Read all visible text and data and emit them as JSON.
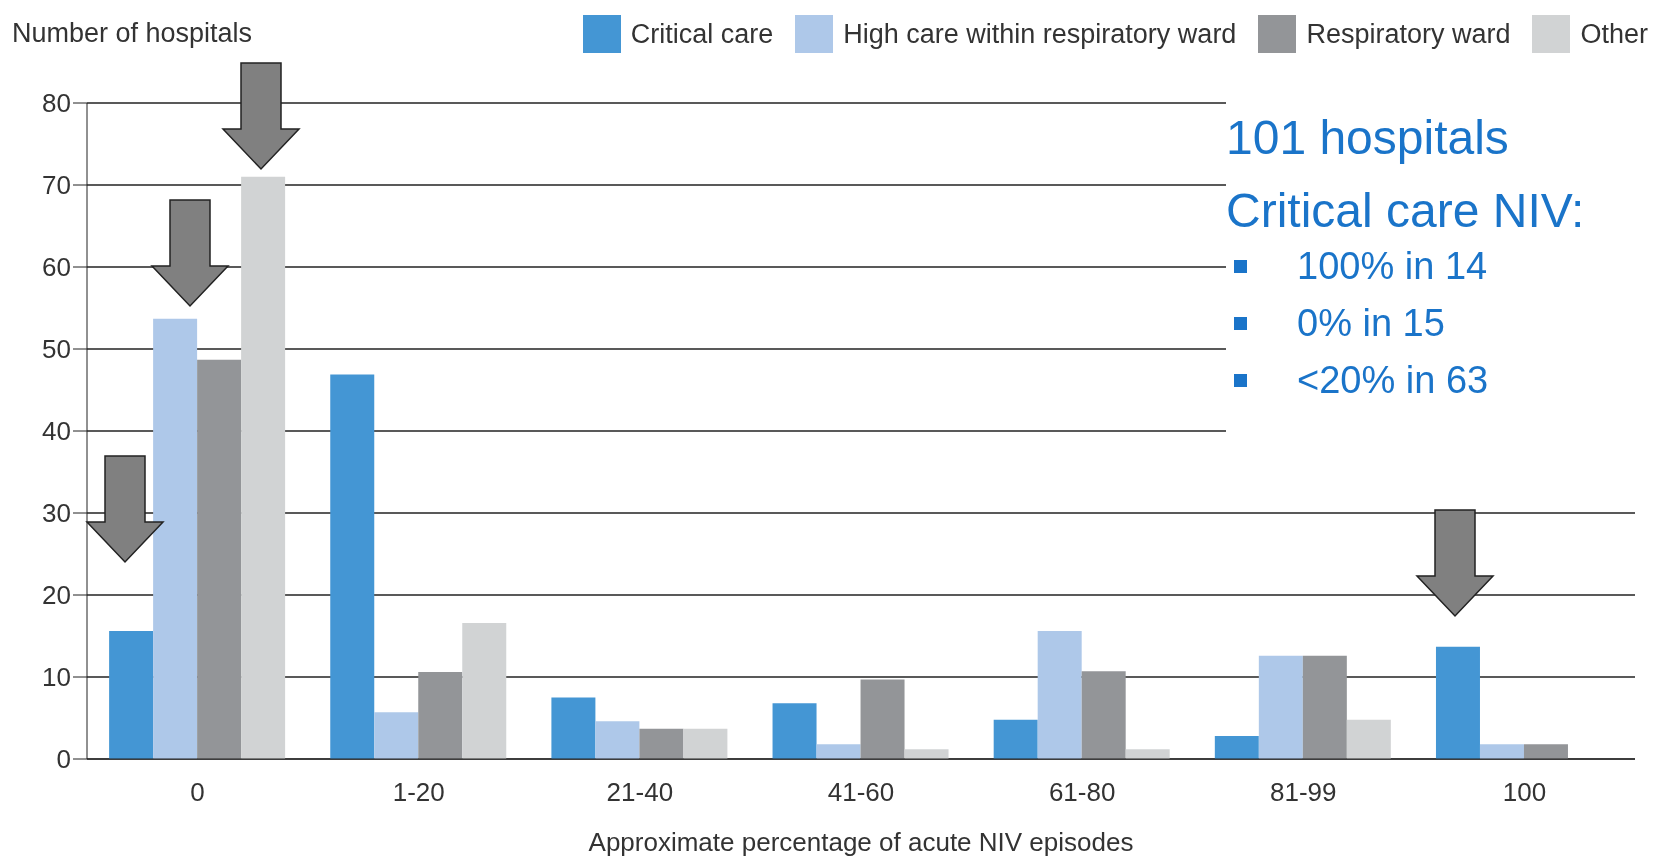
{
  "chart_data": {
    "type": "bar",
    "ylabel": "Number of hospitals",
    "xlabel": "Approximate percentage of acute NIV episodes",
    "categories": [
      "0",
      "1-20",
      "21-40",
      "41-60",
      "61-80",
      "81-99",
      "100"
    ],
    "series": [
      {
        "name": "Critical care",
        "color": "#4496d4",
        "values": [
          15.6,
          46.9,
          7.5,
          6.8,
          4.8,
          2.8,
          13.7
        ]
      },
      {
        "name": "High care within respiratory ward",
        "color": "#aec8e9",
        "values": [
          53.7,
          5.7,
          4.6,
          1.8,
          15.6,
          12.6,
          1.8
        ]
      },
      {
        "name": "Respiratory ward",
        "color": "#939598",
        "values": [
          48.7,
          10.6,
          3.7,
          9.7,
          10.7,
          12.6,
          1.8
        ]
      },
      {
        "name": "Other",
        "color": "#d1d3d4",
        "values": [
          71,
          16.6,
          3.7,
          1.2,
          1.2,
          4.8,
          0
        ]
      }
    ],
    "ylim": [
      0,
      80
    ],
    "yticks": [
      0,
      10,
      20,
      30,
      40,
      50,
      60,
      70,
      80
    ],
    "grid": "y",
    "legend": "top right",
    "annotations": [
      "101 hospitals",
      "Critical care NIV:",
      "100% in 14",
      "0% in 15",
      "<20% in 63"
    ]
  }
}
